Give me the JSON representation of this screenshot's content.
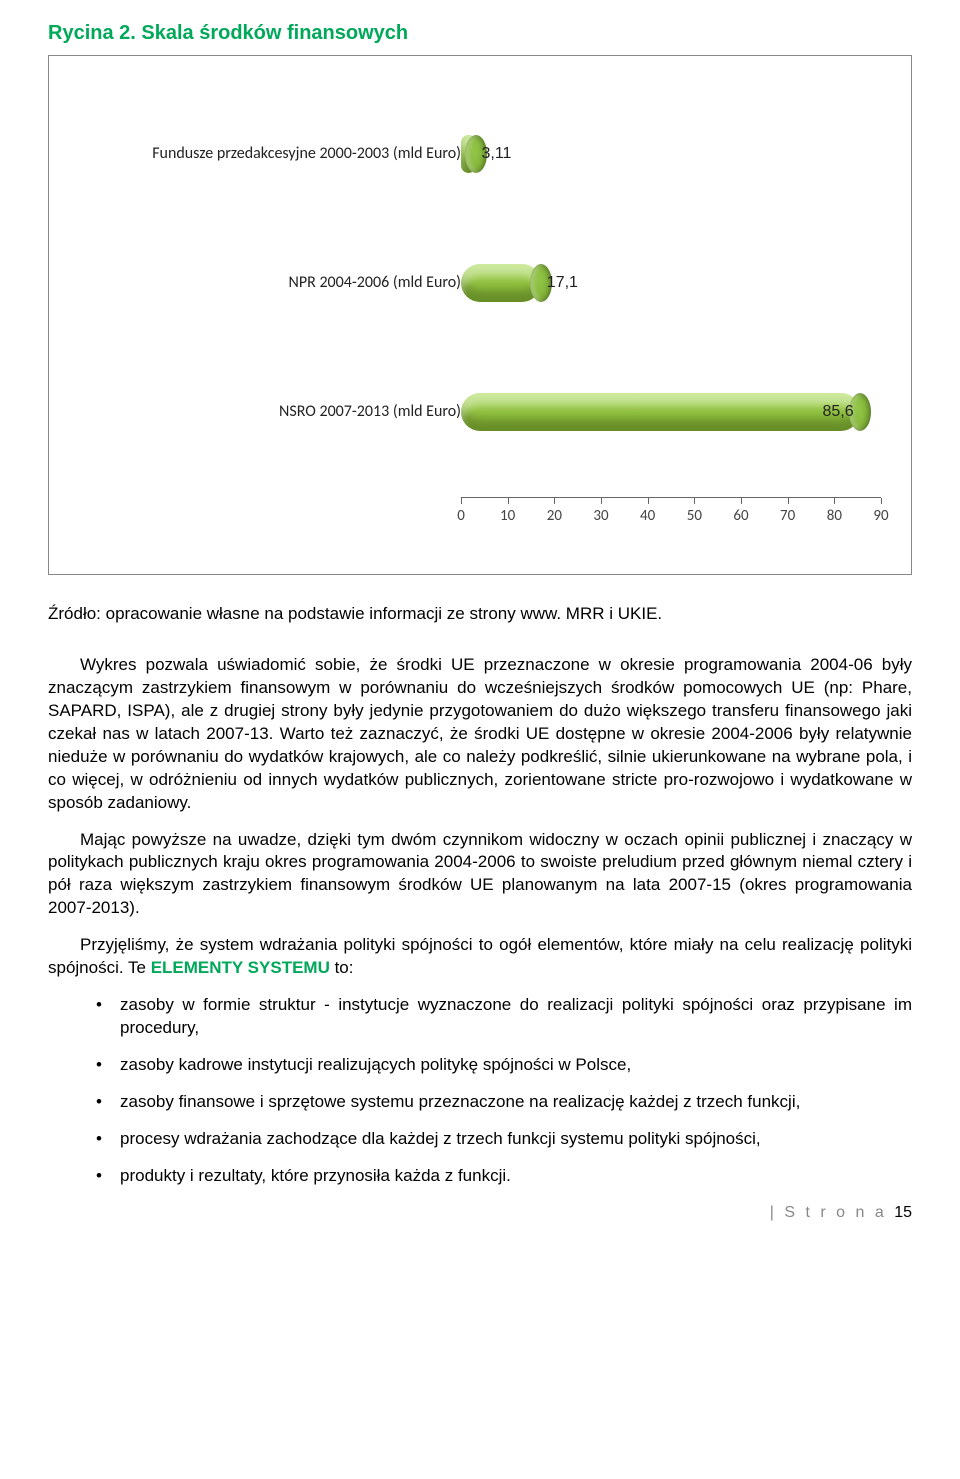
{
  "figure_title": "Rycina 2. Skala środków finansowych",
  "chart": {
    "type": "bar-horizontal",
    "background_color": "#ffffff",
    "bar_color": "#8fbf3f",
    "bar_cap_color": "#7aac2f",
    "categories": [
      "Fundusze przedakcesyjne 2000-2003 (mld Euro)",
      "NPR 2004-2006 (mld Euro)",
      "NSRO 2007-2013 (mld Euro)"
    ],
    "values": [
      3.11,
      17.1,
      85.6
    ],
    "value_labels": [
      "3,11",
      "17,1",
      "85,6"
    ],
    "y_positions_pct": [
      20,
      50,
      80
    ],
    "xlim": [
      0,
      90
    ],
    "xtick_step": 10,
    "xticks": [
      "0",
      "10",
      "20",
      "30",
      "40",
      "50",
      "60",
      "70",
      "80",
      "90"
    ],
    "label_fontsize": 16,
    "tick_fontsize": 15
  },
  "source": "Źródło: opracowanie własne na podstawie informacji ze strony www. MRR i UKIE.",
  "paragraphs": [
    "Wykres pozwala uświadomić sobie, że środki UE przeznaczone w okresie programowania 2004-06 były znaczącym zastrzykiem finansowym w porównaniu do wcześniejszych środków pomocowych UE (np: Phare, SAPARD, ISPA), ale z drugiej strony były jedynie przygotowaniem do dużo większego transferu finansowego jaki czekał nas w latach 2007-13. Warto też zaznaczyć, że środki UE dostępne w okresie 2004-2006 były relatywnie nieduże w porównaniu do wydatków krajowych, ale co należy podkreślić, silnie ukierunkowane na wybrane pola, i co więcej, w odróżnieniu od innych wydatków publicznych, zorientowane stricte pro-rozwojowo i wydatkowane w sposób zadaniowy.",
    "Mając powyższe na uwadze, dzięki tym dwóm czynnikom widoczny w oczach opinii publicznej i znaczący w politykach publicznych kraju okres programowania 2004-2006 to swoiste preludium przed głównym niemal cztery i pół raza większym zastrzykiem finansowym środków UE planowanym na lata 2007-15 (okres programowania 2007-2013)."
  ],
  "paragraph3_pre": "Przyjęliśmy, że system wdrażania polityki spójności to ogół elementów, które miały na celu realizację polityki spójności. Te ",
  "paragraph3_highlight": "ELEMENTY SYSTEMU",
  "paragraph3_post": " to:",
  "bullets": [
    "zasoby w formie struktur - instytucje wyznaczone do realizacji polityki spójności oraz przypisane im procedury,",
    "zasoby kadrowe instytucji realizujących politykę spójności w Polsce,",
    "zasoby finansowe i sprzętowe systemu przeznaczone na realizację każdej z trzech funkcji,",
    "procesy wdrażania zachodzące dla każdej z trzech funkcji systemu polityki spójności,",
    "produkty i rezultaty, które przynosiła każda z funkcji."
  ],
  "footer_label": "| S t r o n a",
  "page_number": "15"
}
